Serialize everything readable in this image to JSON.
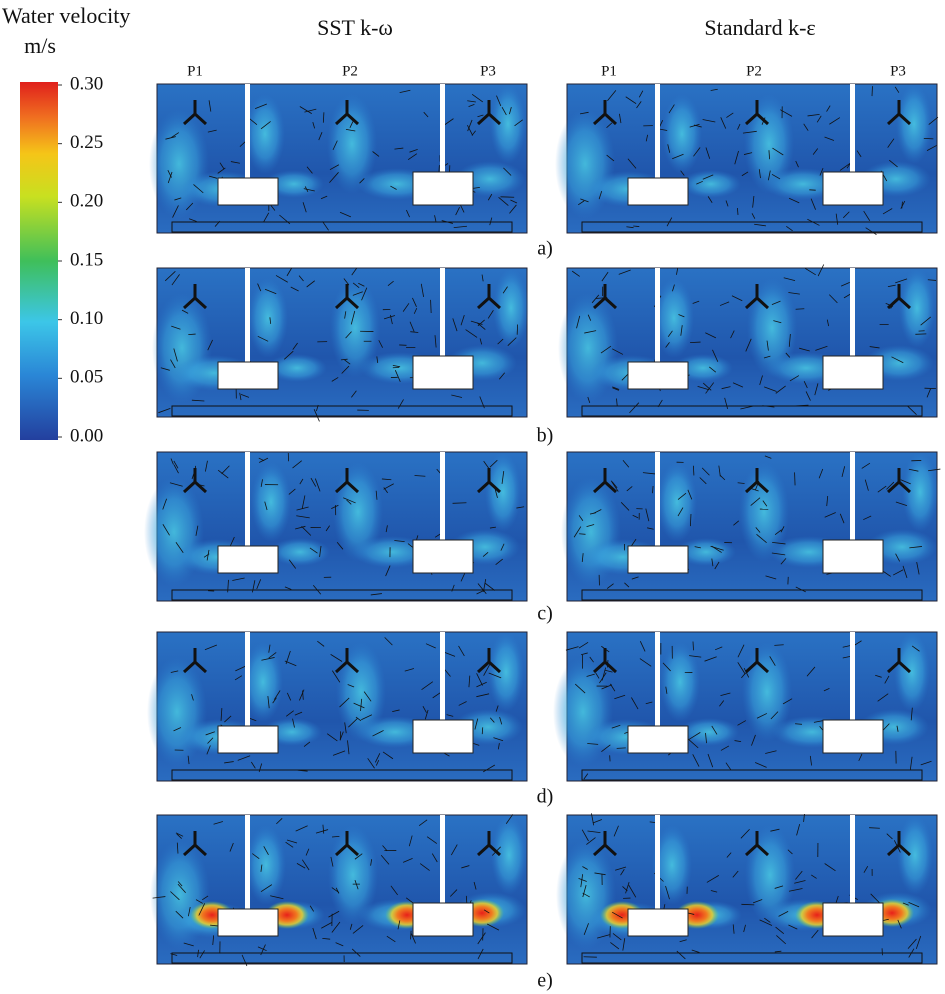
{
  "legend": {
    "title": "Water velocity",
    "unit": "m/s",
    "ticks": [
      {
        "value": 0.3,
        "label": "0.30"
      },
      {
        "value": 0.25,
        "label": "0.25"
      },
      {
        "value": 0.2,
        "label": "0.20"
      },
      {
        "value": 0.15,
        "label": "0.15"
      },
      {
        "value": 0.1,
        "label": "0.10"
      },
      {
        "value": 0.05,
        "label": "0.05"
      },
      {
        "value": 0,
        "label": "0.00"
      }
    ]
  },
  "columns": [
    "SST k-ω",
    "Standard k-ε"
  ],
  "points": [
    "P1",
    "P2",
    "P3"
  ],
  "panels": [
    "a)",
    "b)",
    "c)",
    "d)",
    "e)"
  ]
}
